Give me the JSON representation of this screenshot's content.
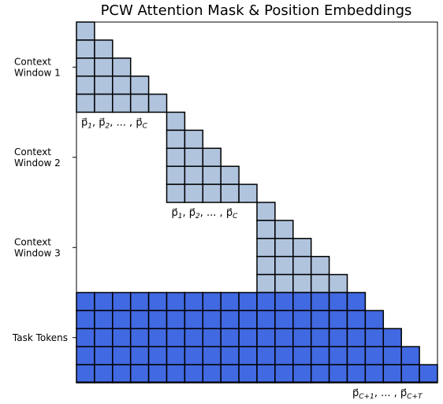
{
  "title": "PCW Attention Mask & Position Embeddings",
  "row_labels": [
    {
      "lines": [
        "Context",
        "Window 1"
      ]
    },
    {
      "lines": [
        "Context",
        "Window 2"
      ]
    },
    {
      "lines": [
        "Context",
        "Window 3"
      ]
    },
    {
      "lines": [
        "Task Tokens"
      ]
    }
  ],
  "position_labels": [
    {
      "segments": [
        {
          "text": "p⃗",
          "sub": "1"
        },
        {
          "text": ", "
        },
        {
          "text": "p⃗",
          "sub": "2"
        },
        {
          "text": ", ... , "
        },
        {
          "text": "p⃗",
          "sub": "C"
        }
      ]
    },
    {
      "segments": [
        {
          "text": "p⃗",
          "sub": "1"
        },
        {
          "text": ", "
        },
        {
          "text": "p⃗",
          "sub": "2"
        },
        {
          "text": ", ... , "
        },
        {
          "text": "p⃗",
          "sub": "C"
        }
      ]
    },
    {
      "segments": [
        {
          "text": "p⃗",
          "sub": "C+1"
        },
        {
          "text": ", ... , "
        },
        {
          "text": "p⃗",
          "sub": "C+T"
        }
      ]
    }
  ]
}
